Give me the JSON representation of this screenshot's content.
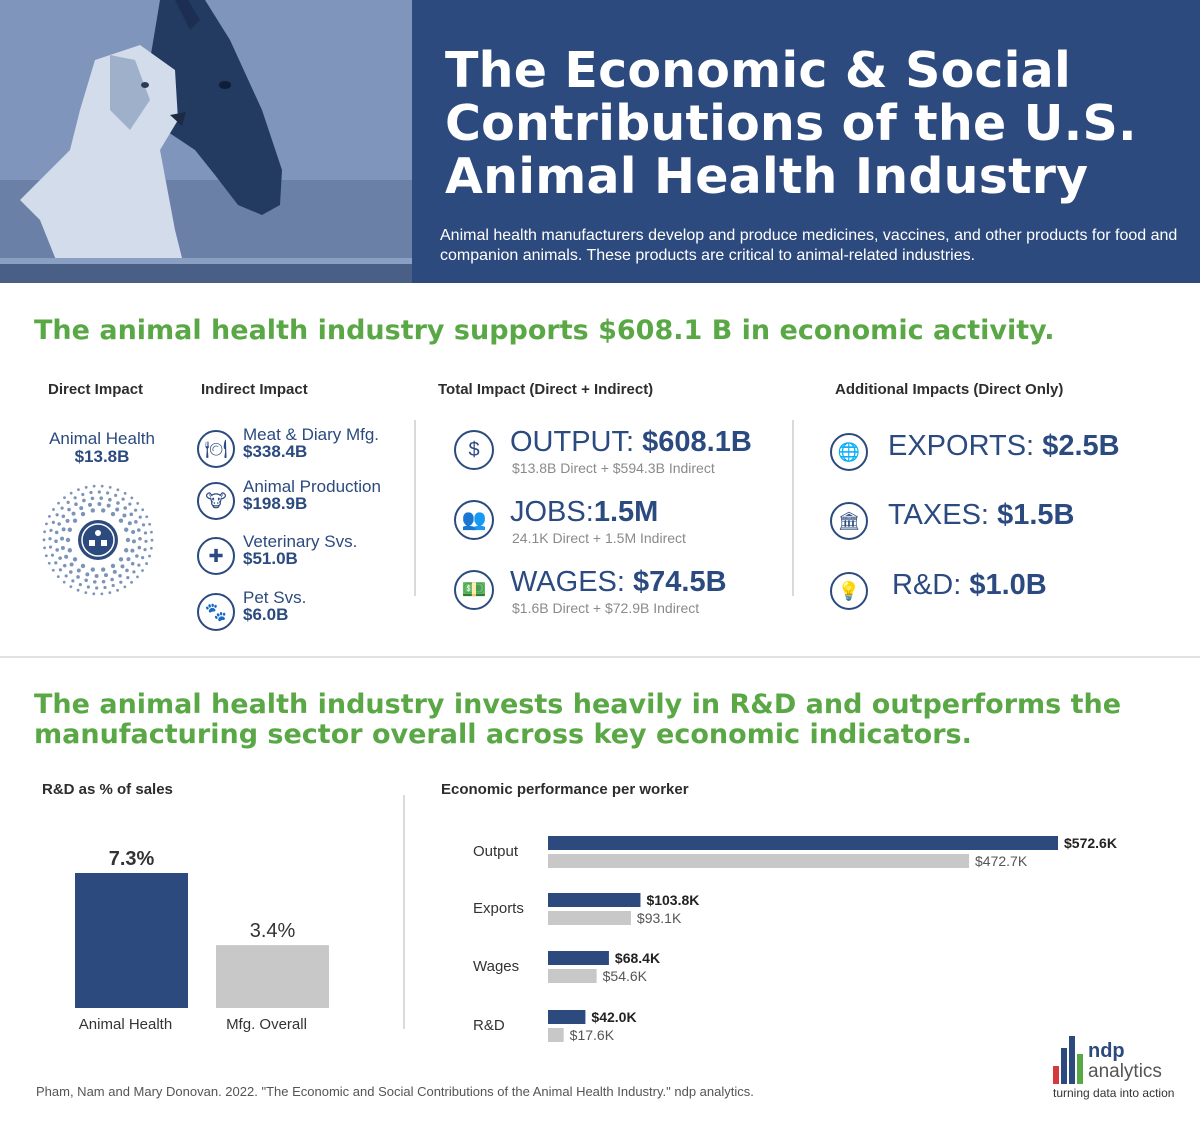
{
  "header": {
    "title_lines": [
      "The Economic & Social",
      "Contributions of the U.S.",
      "Animal Health Industry"
    ],
    "subtitle": "Animal health manufacturers develop and produce medicines, vaccines, and other products for food and companion animals.  These products are critical to animal-related industries.",
    "colors": {
      "navy": "#2c4a7d",
      "green": "#5aa845",
      "gray": "#c8c8c8"
    }
  },
  "section1": {
    "title": "The animal health industry supports $608.1 B in economic activity.",
    "direct": {
      "heading": "Direct Impact",
      "label": "Animal Health",
      "value": "$13.8B",
      "icon": "network-icon"
    },
    "indirect": {
      "heading": "Indirect Impact",
      "items": [
        {
          "label": "Meat & Diary  Mfg.",
          "value": "$338.4B",
          "icon": "plate-cutlery-icon"
        },
        {
          "label": "Animal Production",
          "value": "$198.9B",
          "icon": "cow-icon"
        },
        {
          "label": "Veterinary Svs.",
          "value": "$51.0B",
          "icon": "medical-cross-icon"
        },
        {
          "label": "Pet  Svs.",
          "value": "$6.0B",
          "icon": "paw-icon"
        }
      ]
    },
    "total": {
      "heading": "Total Impact (Direct + Indirect)",
      "items": [
        {
          "label": "OUTPUT:",
          "value": "$608.1B",
          "sub": "$13.8B Direct + $594.3B Indirect",
          "icon": "dollar-coin-icon"
        },
        {
          "label": "JOBS:",
          "value": "1.5M",
          "sub": "24.1K Direct + 1.5M Indirect",
          "icon": "people-icon"
        },
        {
          "label": "WAGES:",
          "value": "$74.5B",
          "sub": "$1.6B Direct + $72.9B Indirect",
          "icon": "cash-icon"
        }
      ]
    },
    "additional": {
      "heading": "Additional Impacts  (Direct Only)",
      "items": [
        {
          "label": "EXPORTS:",
          "value": "$2.5B",
          "icon": "globe-icon"
        },
        {
          "label": "TAXES:",
          "value": "$1.5B",
          "icon": "bank-icon"
        },
        {
          "label": "R&D:",
          "value": "$1.0B",
          "icon": "lightbulb-gear-icon"
        }
      ]
    }
  },
  "section2": {
    "title_lines": [
      "The animal health industry invests heavily in R&D and outperforms the",
      "manufacturing sector overall across key economic indicators."
    ]
  },
  "chart_data": [
    {
      "type": "bar",
      "title": "R&D as % of sales",
      "categories": [
        "Animal Health",
        "Mfg. Overall"
      ],
      "values": [
        7.3,
        3.4
      ],
      "labels": [
        "7.3%",
        "3.4%"
      ],
      "ylim": [
        0,
        8
      ],
      "colors": [
        "#2c4a7d",
        "#c8c8c8"
      ]
    },
    {
      "type": "bar",
      "orientation": "horizontal",
      "title": "Economic performance per worker",
      "categories": [
        "Output",
        "Exports",
        "Wages",
        "R&D"
      ],
      "series": [
        {
          "name": "Animal Health",
          "values": [
            572.6,
            103.8,
            68.4,
            42.0
          ],
          "labels": [
            "$572.6K",
            "$103.8K",
            "$68.4K",
            "$42.0K"
          ],
          "color": "#2c4a7d"
        },
        {
          "name": "Mfg. Overall",
          "values": [
            472.7,
            93.1,
            54.6,
            17.6
          ],
          "labels": [
            "$472.7K",
            "$93.1K",
            "$54.6K",
            "$17.6K"
          ],
          "color": "#c8c8c8"
        }
      ],
      "xlim": [
        0,
        572.6
      ]
    }
  ],
  "footer": {
    "citation": "Pham, Nam and Mary Donovan. 2022. \"The Economic and Social Contributions of the Animal Health Industry.\" ndp analytics.",
    "logo": {
      "name": "ndp",
      "sub": "analytics",
      "tagline": "turning data into action"
    }
  }
}
